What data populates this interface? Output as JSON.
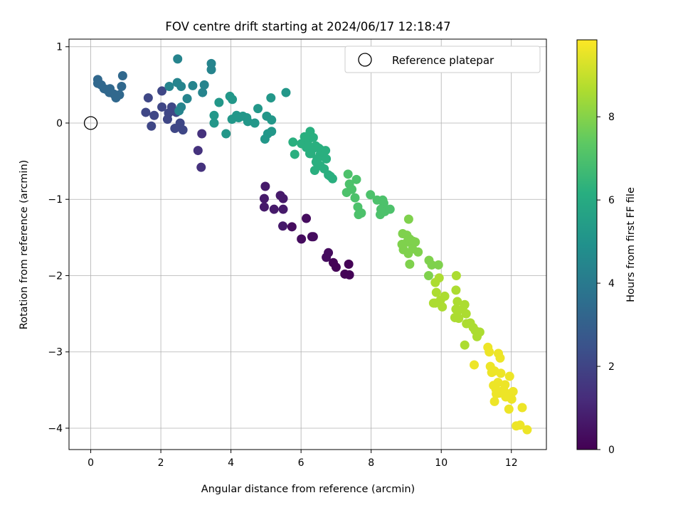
{
  "chart_data": {
    "type": "scatter",
    "title": "FOV centre drift starting at 2024/06/17 12:18:47",
    "xlabel": "Angular distance from reference (arcmin)",
    "ylabel": "Rotation from reference (arcmin)",
    "xlim": [
      -0.62,
      13.0
    ],
    "ylim": [
      -4.28,
      1.1
    ],
    "xticks": [
      0,
      2,
      4,
      6,
      8,
      10,
      12
    ],
    "yticks": [
      -4,
      -3,
      -2,
      -1,
      0,
      1
    ],
    "xtick_labels": [
      "0",
      "2",
      "4",
      "6",
      "8",
      "10",
      "12"
    ],
    "ytick_labels": [
      "−4",
      "−3",
      "−2",
      "−1",
      "0",
      "1"
    ],
    "grid": true,
    "legend": {
      "position": "top-right",
      "entries": [
        "Reference platepar"
      ]
    },
    "reference_point": {
      "x": 0,
      "y": 0
    },
    "colorbar": {
      "label": "Hours from first FF file",
      "range": [
        0,
        9.85
      ],
      "ticks": [
        0,
        2,
        4,
        6,
        8
      ],
      "tick_labels": [
        "0",
        "2",
        "4",
        "6",
        "8"
      ],
      "colormap": "viridis"
    },
    "series": [
      {
        "points": [
          [
            7.25,
            -1.98
          ],
          [
            7.38,
            -1.99
          ],
          [
            7.36,
            -1.85
          ],
          [
            7.0,
            -1.89
          ],
          [
            6.92,
            -1.83
          ],
          [
            6.78,
            -1.7
          ],
          [
            6.72,
            -1.76
          ],
          [
            6.35,
            -1.49
          ],
          [
            6.31,
            -1.49
          ],
          [
            6.01,
            -1.52
          ],
          [
            6.15,
            -1.25
          ],
          [
            5.74,
            -1.36
          ],
          [
            5.48,
            -1.35
          ],
          [
            4.95,
            -1.1
          ],
          [
            5.23,
            -1.13
          ],
          [
            5.49,
            -1.13
          ],
          [
            4.95,
            -0.99
          ],
          [
            5.41,
            -0.95
          ],
          [
            5.49,
            -0.99
          ],
          [
            4.98,
            -0.83
          ],
          [
            3.15,
            -0.58
          ],
          [
            3.06,
            -0.36
          ],
          [
            3.17,
            -0.14
          ],
          [
            2.55,
            0.0
          ],
          [
            2.63,
            -0.09
          ],
          [
            2.4,
            -0.07
          ],
          [
            2.19,
            0.05
          ],
          [
            1.81,
            0.1
          ],
          [
            1.73,
            -0.04
          ],
          [
            1.57,
            0.14
          ],
          [
            2.03,
            0.21
          ],
          [
            2.44,
            0.14
          ],
          [
            2.31,
            0.21
          ],
          [
            2.52,
            0.16
          ],
          [
            1.64,
            0.33
          ],
          [
            0.2,
            0.57
          ],
          [
            0.2,
            0.52
          ],
          [
            0.3,
            0.5
          ],
          [
            0.38,
            0.45
          ],
          [
            0.45,
            0.44
          ],
          [
            0.53,
            0.4
          ],
          [
            0.55,
            0.45
          ],
          [
            0.66,
            0.38
          ],
          [
            0.72,
            0.33
          ],
          [
            0.82,
            0.37
          ],
          [
            0.88,
            0.48
          ],
          [
            0.91,
            0.62
          ],
          [
            2.03,
            0.42
          ],
          [
            2.24,
            0.48
          ],
          [
            2.47,
            0.53
          ],
          [
            2.58,
            0.48
          ],
          [
            2.75,
            0.32
          ],
          [
            2.91,
            0.49
          ],
          [
            3.19,
            0.4
          ],
          [
            3.24,
            0.5
          ],
          [
            3.44,
            0.7
          ],
          [
            3.44,
            0.78
          ],
          [
            2.48,
            0.84
          ],
          [
            2.58,
            0.21
          ],
          [
            2.22,
            0.13
          ],
          [
            3.52,
            0.1
          ],
          [
            3.52,
            0.0
          ],
          [
            3.66,
            0.27
          ],
          [
            3.86,
            -0.14
          ],
          [
            3.97,
            0.35
          ],
          [
            4.04,
            0.31
          ],
          [
            4.03,
            0.05
          ],
          [
            4.16,
            0.1
          ],
          [
            4.22,
            0.07
          ],
          [
            4.34,
            0.09
          ],
          [
            4.45,
            0.07
          ],
          [
            4.48,
            0.02
          ],
          [
            4.77,
            0.19
          ],
          [
            4.68,
            0.0
          ],
          [
            5.02,
            0.09
          ],
          [
            5.14,
            0.33
          ],
          [
            5.57,
            0.4
          ],
          [
            5.16,
            0.04
          ],
          [
            5.05,
            -0.14
          ],
          [
            4.97,
            -0.21
          ],
          [
            5.16,
            -0.11
          ],
          [
            5.77,
            -0.25
          ],
          [
            5.82,
            -0.41
          ],
          [
            6.01,
            -0.27
          ],
          [
            6.1,
            -0.18
          ],
          [
            6.15,
            -0.32
          ],
          [
            6.22,
            -0.21
          ],
          [
            6.26,
            -0.11
          ],
          [
            6.25,
            -0.4
          ],
          [
            6.35,
            -0.33
          ],
          [
            6.42,
            -0.3
          ],
          [
            6.51,
            -0.33
          ],
          [
            6.55,
            -0.41
          ],
          [
            6.61,
            -0.44
          ],
          [
            6.46,
            -0.47
          ],
          [
            6.39,
            -0.62
          ],
          [
            6.55,
            -0.56
          ],
          [
            6.66,
            -0.6
          ],
          [
            6.72,
            -0.47
          ],
          [
            6.78,
            -0.68
          ],
          [
            6.84,
            -0.7
          ],
          [
            6.9,
            -0.73
          ],
          [
            6.35,
            -0.19
          ],
          [
            6.22,
            -0.3
          ],
          [
            6.6,
            -0.36
          ],
          [
            6.7,
            -0.36
          ],
          [
            6.28,
            -0.4
          ],
          [
            6.43,
            -0.51
          ],
          [
            7.34,
            -0.67
          ],
          [
            7.58,
            -0.74
          ],
          [
            7.38,
            -0.8
          ],
          [
            7.3,
            -0.91
          ],
          [
            7.45,
            -0.87
          ],
          [
            7.54,
            -0.98
          ],
          [
            7.62,
            -1.1
          ],
          [
            7.72,
            -1.18
          ],
          [
            7.64,
            -1.2
          ],
          [
            7.98,
            -0.94
          ],
          [
            8.17,
            -1.01
          ],
          [
            8.33,
            -1.01
          ],
          [
            8.36,
            -1.05
          ],
          [
            8.28,
            -1.13
          ],
          [
            8.39,
            -1.16
          ],
          [
            8.26,
            -1.2
          ],
          [
            8.54,
            -1.13
          ],
          [
            9.07,
            -1.26
          ],
          [
            8.9,
            -1.45
          ],
          [
            9.02,
            -1.47
          ],
          [
            9.1,
            -1.52
          ],
          [
            9.03,
            -1.56
          ],
          [
            9.2,
            -1.55
          ],
          [
            9.26,
            -1.56
          ],
          [
            9.18,
            -1.65
          ],
          [
            8.88,
            -1.59
          ],
          [
            8.92,
            -1.66
          ],
          [
            9.06,
            -1.71
          ],
          [
            9.1,
            -1.85
          ],
          [
            9.34,
            -1.69
          ],
          [
            9.65,
            -1.8
          ],
          [
            9.73,
            -1.86
          ],
          [
            9.92,
            -1.86
          ],
          [
            9.64,
            -2.0
          ],
          [
            9.83,
            -2.09
          ],
          [
            9.94,
            -2.03
          ],
          [
            9.86,
            -2.22
          ],
          [
            9.98,
            -2.32
          ],
          [
            10.1,
            -2.27
          ],
          [
            10.03,
            -2.41
          ],
          [
            9.83,
            -2.36
          ],
          [
            9.78,
            -2.36
          ],
          [
            10.43,
            -2.0
          ],
          [
            10.42,
            -2.19
          ],
          [
            10.46,
            -2.34
          ],
          [
            10.42,
            -2.44
          ],
          [
            10.48,
            -2.46
          ],
          [
            10.61,
            -2.44
          ],
          [
            10.67,
            -2.38
          ],
          [
            10.71,
            -2.5
          ],
          [
            10.5,
            -2.56
          ],
          [
            10.39,
            -2.55
          ],
          [
            10.83,
            -2.62
          ],
          [
            10.72,
            -2.63
          ],
          [
            10.91,
            -2.68
          ],
          [
            10.97,
            -2.72
          ],
          [
            11.02,
            -2.8
          ],
          [
            11.1,
            -2.74
          ],
          [
            10.67,
            -2.91
          ],
          [
            10.94,
            -3.17
          ],
          [
            11.33,
            -2.94
          ],
          [
            11.37,
            -3.0
          ],
          [
            11.4,
            -3.19
          ],
          [
            11.44,
            -3.27
          ],
          [
            11.52,
            -3.25
          ],
          [
            11.63,
            -3.02
          ],
          [
            11.68,
            -3.08
          ],
          [
            11.49,
            -3.44
          ],
          [
            11.56,
            -3.49
          ],
          [
            11.62,
            -3.4
          ],
          [
            11.7,
            -3.28
          ],
          [
            11.57,
            -3.55
          ],
          [
            11.78,
            -3.5
          ],
          [
            11.82,
            -3.43
          ],
          [
            11.91,
            -3.55
          ],
          [
            11.97,
            -3.55
          ],
          [
            11.95,
            -3.32
          ],
          [
            12.05,
            -3.52
          ],
          [
            12.01,
            -3.62
          ],
          [
            11.84,
            -3.59
          ],
          [
            11.66,
            -3.54
          ],
          [
            11.52,
            -3.65
          ],
          [
            11.93,
            -3.75
          ],
          [
            12.14,
            -3.97
          ],
          [
            12.25,
            -3.96
          ],
          [
            12.31,
            -3.73
          ],
          [
            12.45,
            -4.02
          ]
        ]
      }
    ]
  }
}
